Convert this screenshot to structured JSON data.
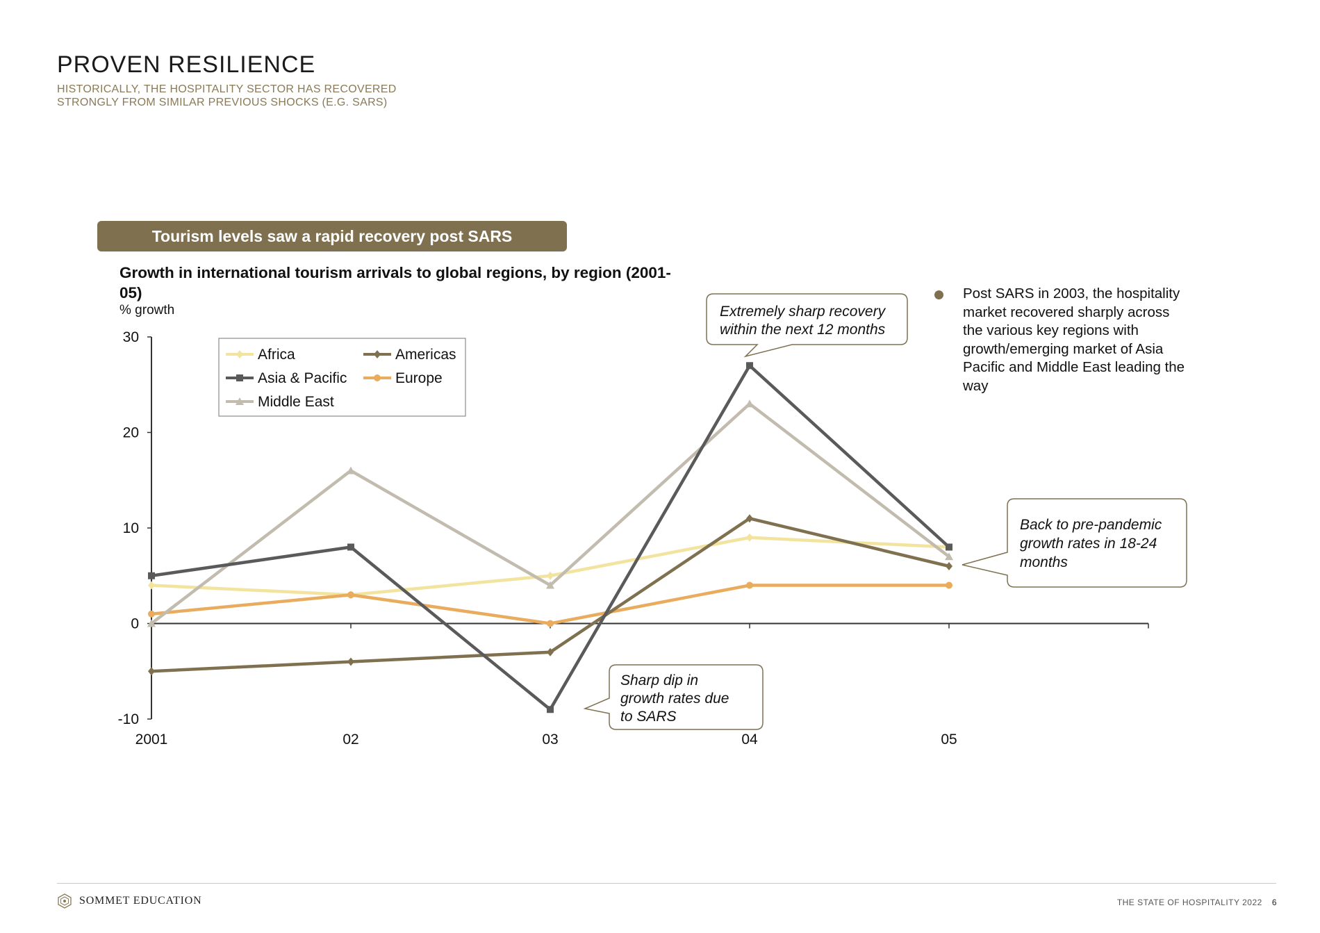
{
  "header": {
    "title": "PROVEN RESILIENCE",
    "subtitle": "HISTORICALLY, THE HOSPITALITY SECTOR HAS RECOVERED STRONGLY FROM SIMILAR PREVIOUS SHOCKS (E.G. SARS)"
  },
  "banner": {
    "text": "Tourism levels saw a rapid recovery post SARS"
  },
  "chart_heading": {
    "title": "Growth in international tourism arrivals to global regions, by region (2001-05)",
    "units": "% growth"
  },
  "callouts": {
    "sharp_recovery": [
      "Extremely sharp recovery",
      "within the next 12 months"
    ],
    "sharp_dip": [
      "Sharp dip in",
      "growth rates due",
      "to SARS"
    ],
    "back_to_pre": [
      "Back to pre-pandemic",
      "growth rates in 18-24",
      "months"
    ]
  },
  "bullet": {
    "text": "Post SARS in 2003, the hospitality market recovered sharply across the various key regions with growth/emerging market of Asia Pacific and Middle East leading the way"
  },
  "colors": {
    "accent": "#7f7150",
    "africa": "#f2e49e",
    "americas": "#7f7150",
    "asia_pacific": "#5a5a5a",
    "europe": "#e9ac5e",
    "middle_east": "#c2bcaf"
  },
  "chart_data": {
    "type": "line",
    "title": "Growth in international tourism arrivals to global regions, by region (2001-05)",
    "ylabel": "% growth",
    "xlabel": "",
    "x": [
      "2001",
      "02",
      "03",
      "04",
      "05"
    ],
    "ylim": [
      -10,
      30
    ],
    "yticks": [
      -10,
      0,
      10,
      20,
      30
    ],
    "grid": false,
    "legend_position": "top-left",
    "series": [
      {
        "name": "Africa",
        "color": "#f2e49e",
        "marker": "diamond",
        "values": [
          4,
          3,
          5,
          9,
          8
        ]
      },
      {
        "name": "Americas",
        "color": "#7f7150",
        "marker": "diamond",
        "values": [
          -5,
          -4,
          -3,
          11,
          6
        ]
      },
      {
        "name": "Asia & Pacific",
        "color": "#5a5a5a",
        "marker": "square",
        "values": [
          5,
          8,
          -9,
          27,
          8
        ]
      },
      {
        "name": "Europe",
        "color": "#e9ac5e",
        "marker": "circle",
        "values": [
          1,
          3,
          0,
          4,
          4
        ]
      },
      {
        "name": "Middle East",
        "color": "#c2bcaf",
        "marker": "triangle",
        "values": [
          0,
          16,
          4,
          23,
          7
        ]
      }
    ]
  },
  "footer": {
    "brand": "SOMMET EDUCATION",
    "report": "THE STATE OF HOSPITALITY 2022",
    "page": "6",
    "logo_icon": "hexagon-logo-icon"
  }
}
